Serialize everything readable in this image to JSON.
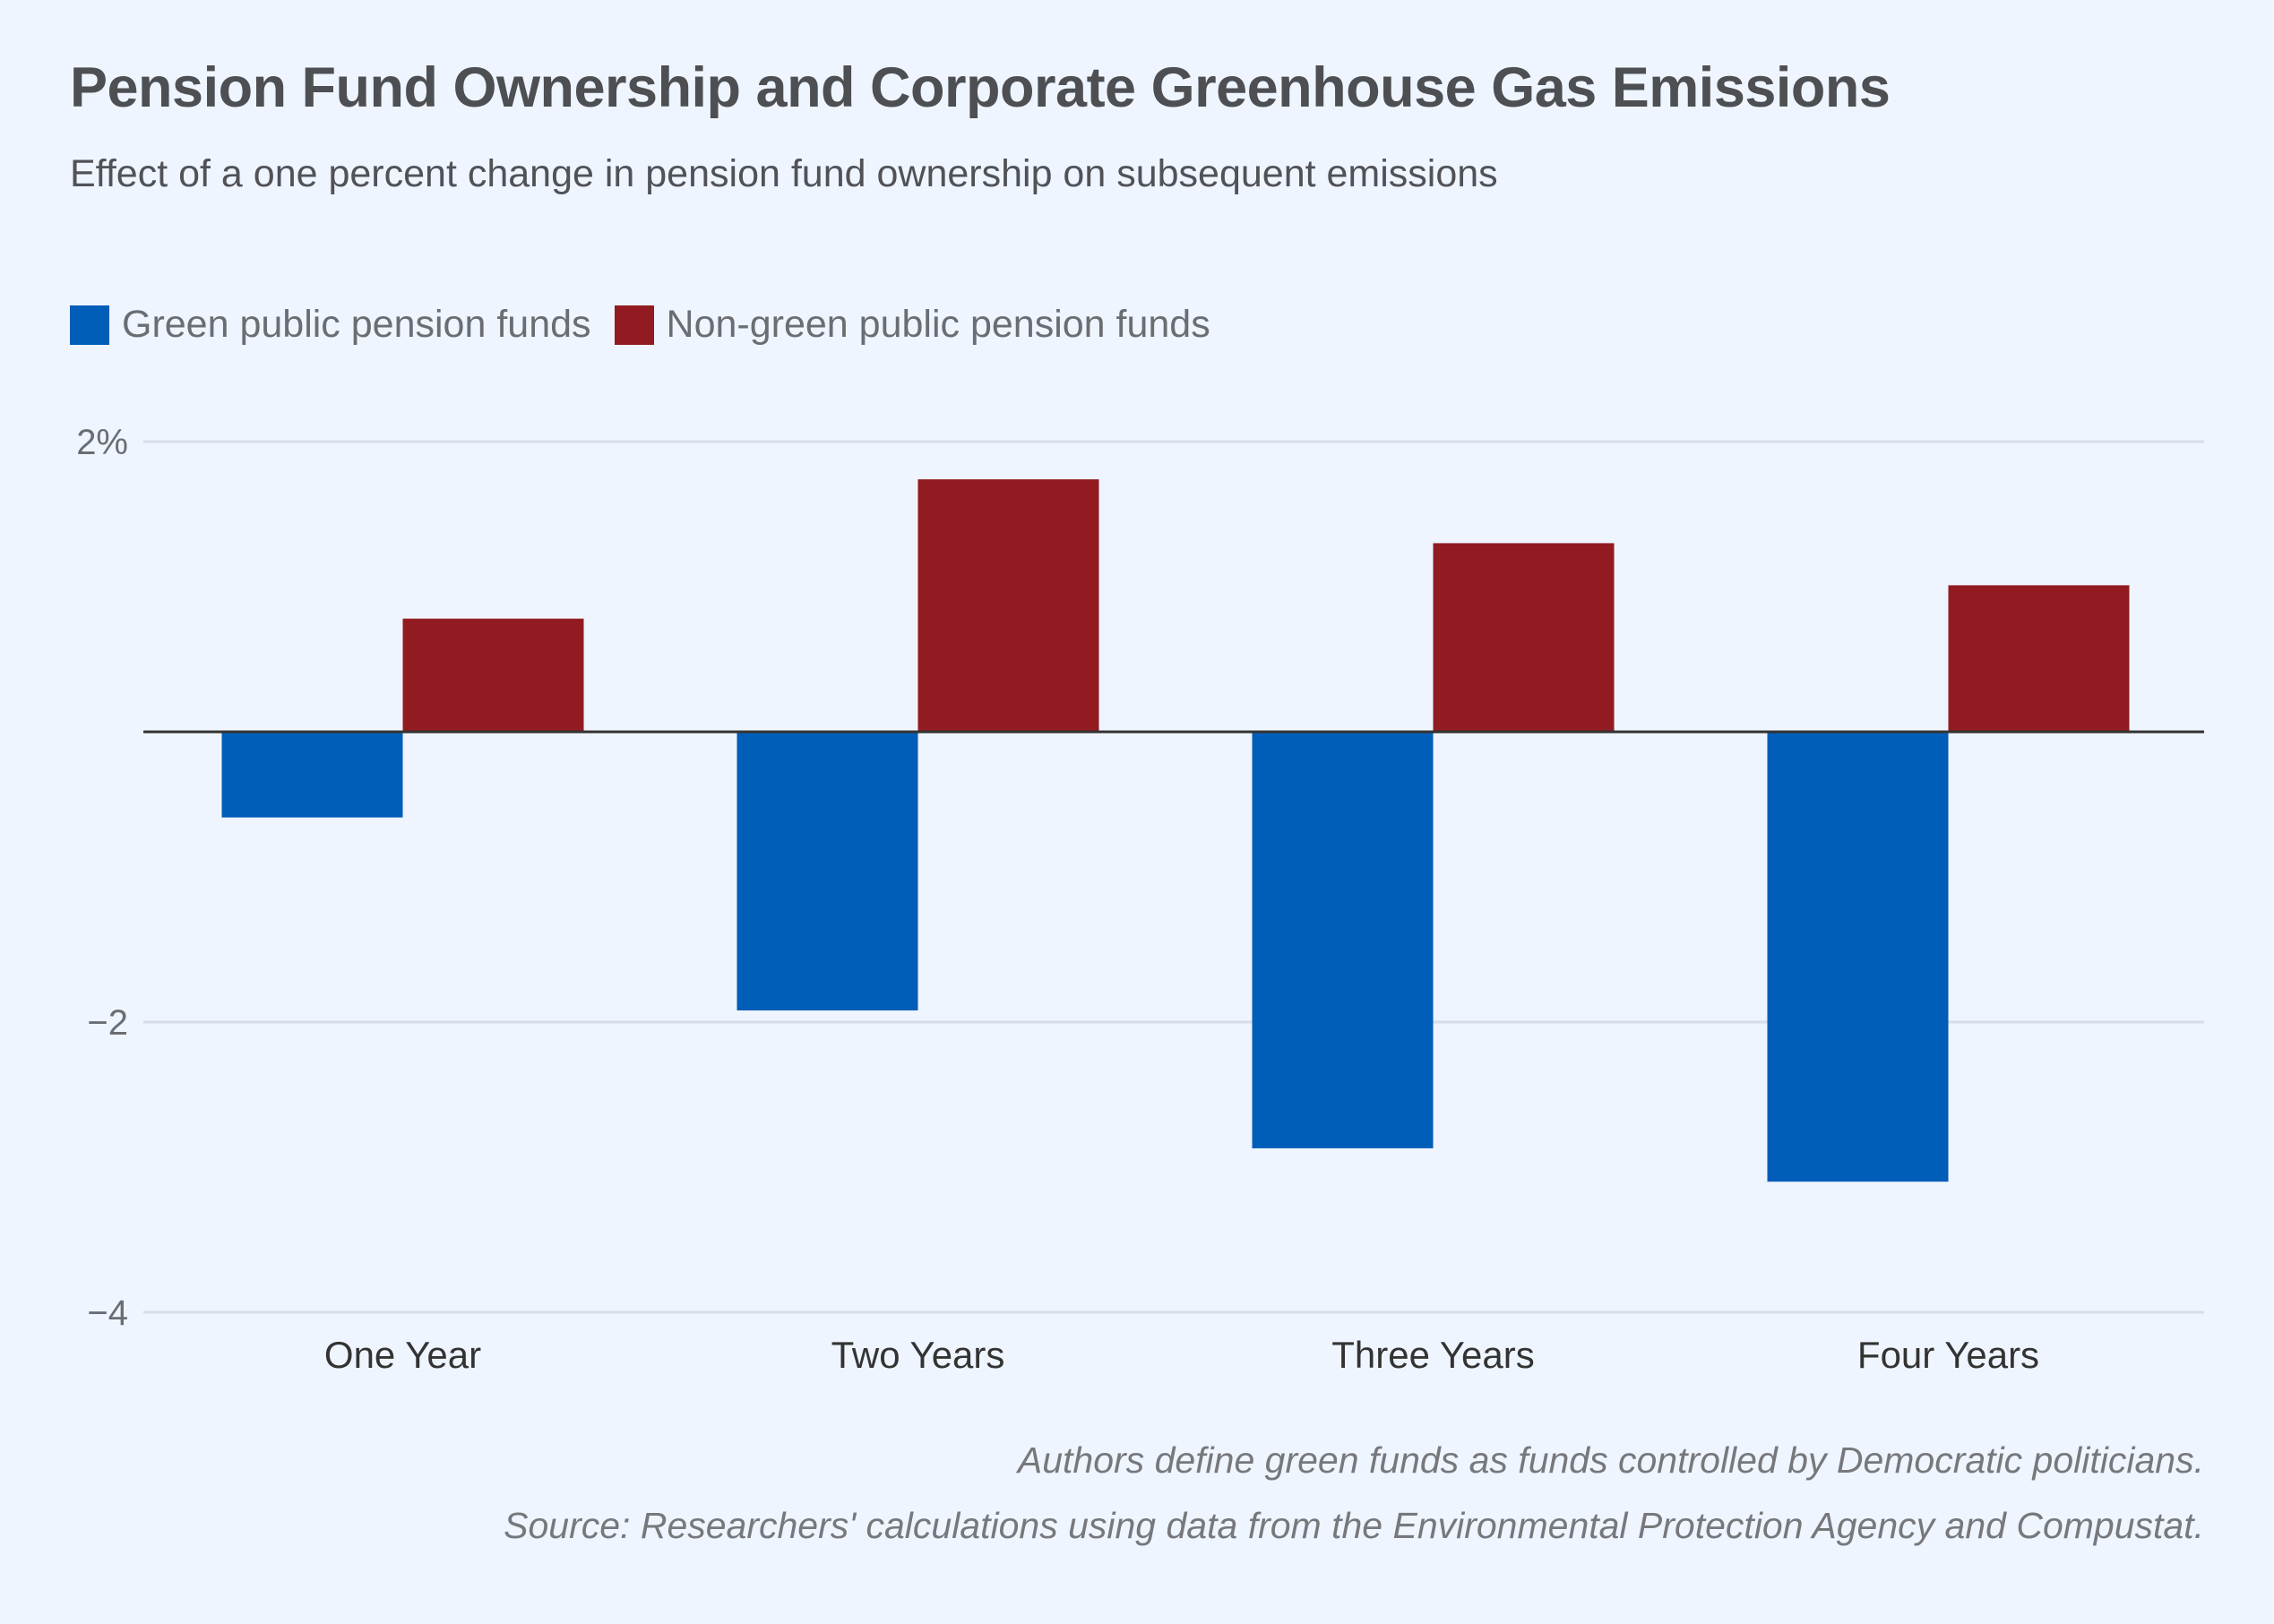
{
  "chart_data": {
    "type": "bar",
    "title": "Pension Fund Ownership and Corporate Greenhouse Gas Emissions",
    "subtitle": "Effect of a one percent change in pension fund ownership on subsequent emissions",
    "categories": [
      "One Year",
      "Two Years",
      "Three Years",
      "Four Years"
    ],
    "series": [
      {
        "name": "Green public pension funds",
        "color": "#005db8",
        "values": [
          -0.59,
          -1.92,
          -2.87,
          -3.1
        ]
      },
      {
        "name": "Non-green public pension funds",
        "color": "#921b22",
        "values": [
          0.78,
          1.74,
          1.3,
          1.01
        ]
      }
    ],
    "xlabel": "",
    "ylabel": "",
    "ylim": [
      -4,
      2
    ],
    "yticks": [
      2,
      -2,
      -4
    ],
    "ytick_labels": [
      "2%",
      "−2",
      "−4"
    ],
    "grid": true,
    "legend_position": "top-left",
    "notes": [
      "Authors define green funds as funds controlled by Democratic politicians.",
      "Source: Researchers' calculations using data from the Environmental Protection Agency and Compustat."
    ]
  },
  "colors": {
    "background": "#eff5fe",
    "gridline": "#d5dde8",
    "zero_line": "#333333"
  }
}
